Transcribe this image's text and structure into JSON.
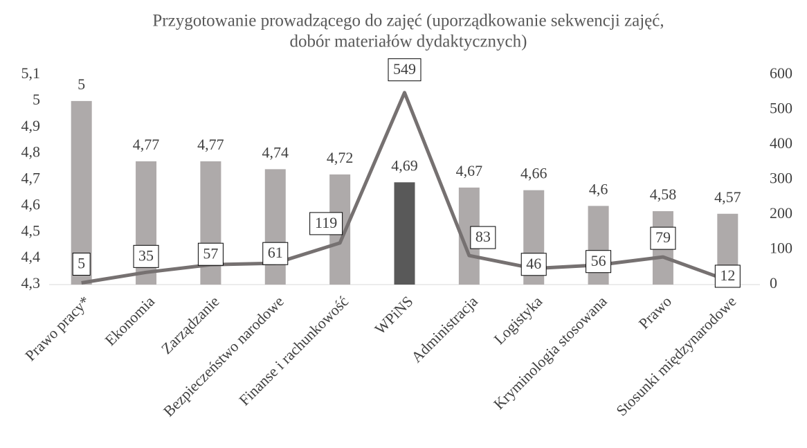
{
  "chart_data": {
    "type": "bar",
    "title": [
      "Przygotowanie prowadzącego do zajęć (uporządkowanie sekwencji zajęć,",
      "dobór materiałów dydaktycznych)"
    ],
    "categories": [
      "Prawo pracy*",
      "Ekonomia",
      "Zarządzanie",
      "Bezpieczeństwo narodowe",
      "Finanse i rachunkowość",
      "WPiNS",
      "Administracja",
      "Logistyka",
      "Kryminologia stosowana",
      "Prawo",
      "Stosunki międzynarodowe"
    ],
    "series": [
      {
        "type": "bar",
        "color": "#aeaaaa",
        "colors": [
          "#aeaaaa",
          "#aeaaaa",
          "#aeaaaa",
          "#aeaaaa",
          "#aeaaaa",
          "#595959",
          "#aeaaaa",
          "#aeaaaa",
          "#aeaaaa",
          "#aeaaaa",
          "#aeaaaa"
        ],
        "values": [
          5,
          4.77,
          4.77,
          4.74,
          4.72,
          4.69,
          4.67,
          4.66,
          4.6,
          4.58,
          4.57
        ],
        "value_labels": [
          "5",
          "4,77",
          "4,77",
          "4,74",
          "4,72",
          "4,69",
          "4,67",
          "4,66",
          "4,6",
          "4,58",
          "4,57"
        ]
      },
      {
        "type": "line",
        "axis": "y2",
        "color": "#767171",
        "values": [
          5,
          35,
          57,
          61,
          119,
          549,
          83,
          46,
          56,
          79,
          12
        ]
      }
    ],
    "ylim": [
      4.3,
      5.1
    ],
    "yticks": [
      {
        "value": 4.3,
        "label": "4,3"
      },
      {
        "value": 4.4,
        "label": "4,4"
      },
      {
        "value": 4.5,
        "label": "4,5"
      },
      {
        "value": 4.6,
        "label": "4,6"
      },
      {
        "value": 4.7,
        "label": "4,7"
      },
      {
        "value": 4.8,
        "label": "4,8"
      },
      {
        "value": 4.9,
        "label": "4,9"
      },
      5,
      {
        "value": 5.1,
        "label": "5,1"
      }
    ],
    "y2lim": [
      0,
      600
    ],
    "y2ticks": [
      0,
      100,
      200,
      300,
      400,
      500,
      600
    ],
    "grid": false
  }
}
